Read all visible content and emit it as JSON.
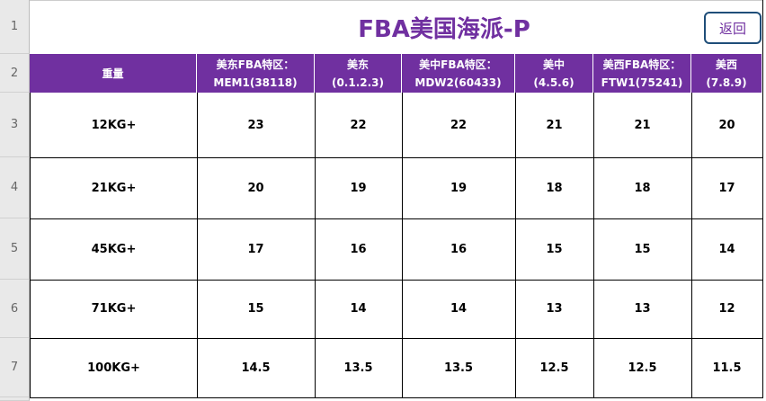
{
  "row_numbers": [
    "1",
    "2",
    "3",
    "4",
    "5",
    "6",
    "7"
  ],
  "header": {
    "title": "FBA美国海派-P",
    "button": "返回"
  },
  "table": {
    "columns": [
      [
        "重量"
      ],
      [
        "美东FBA特区：",
        "MEM1(38118)"
      ],
      [
        "美东",
        "(0.1.2.3)"
      ],
      [
        "美中FBA特区：",
        "MDW2(60433)"
      ],
      [
        "美中",
        "(4.5.6)"
      ],
      [
        "美西FBA特区：",
        "FTW1(75241)"
      ],
      [
        "美西",
        "(7.8.9)"
      ]
    ],
    "rows": [
      [
        "12KG+",
        23,
        22,
        22,
        21,
        21,
        20
      ],
      [
        "21KG+",
        20,
        19,
        19,
        18,
        18,
        17
      ],
      [
        "45KG+",
        17,
        16,
        16,
        15,
        15,
        14
      ],
      [
        "71KG+",
        15,
        14,
        14,
        13,
        13,
        12
      ],
      [
        "100KG+",
        14.5,
        13.5,
        13.5,
        12.5,
        12.5,
        11.5
      ]
    ]
  }
}
